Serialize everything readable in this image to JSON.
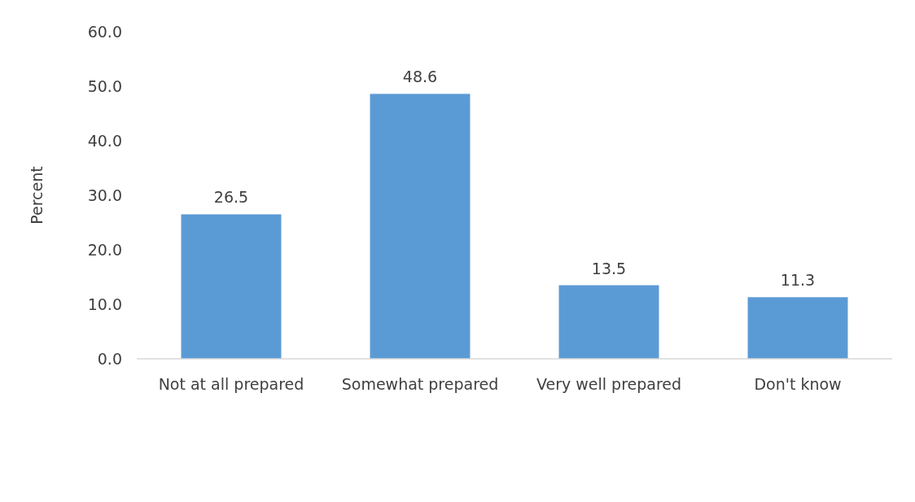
{
  "chart_data": {
    "type": "bar",
    "ylabel": "Percent",
    "categories": [
      "Not at all prepared",
      "Somewhat prepared",
      "Very well prepared",
      "Don't know"
    ],
    "values": [
      26.5,
      48.6,
      13.5,
      11.3
    ],
    "color": "#5b9bd5",
    "ylim": [
      0,
      60
    ],
    "yticks": [
      {
        "value": 0,
        "label": "0.0"
      },
      {
        "value": 10,
        "label": "10.0"
      },
      {
        "value": 20,
        "label": "20.0"
      },
      {
        "value": 30,
        "label": "30.0"
      },
      {
        "value": 40,
        "label": "40.0"
      },
      {
        "value": 50,
        "label": "50.0"
      },
      {
        "value": 60,
        "label": "60.0"
      }
    ],
    "data_labels": true,
    "grid": false
  }
}
